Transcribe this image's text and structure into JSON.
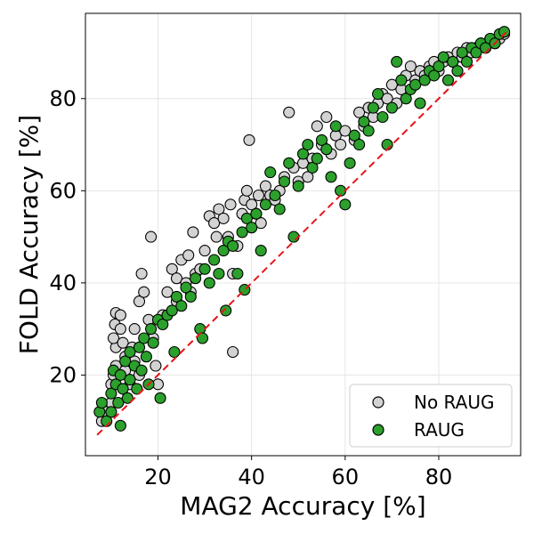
{
  "chart_data": {
    "type": "scatter",
    "title": "",
    "xlabel": "MAG2 Accuracy [%]",
    "ylabel": "FOLD Accuracy [%]",
    "xlim": [
      4.5,
      97.5
    ],
    "ylim": [
      2.5,
      98.5
    ],
    "xticks": [
      20,
      40,
      60,
      80
    ],
    "yticks": [
      20,
      40,
      60,
      80
    ],
    "grid": true,
    "legend_position": "bottom-right",
    "reference_line": {
      "style": "dashed",
      "color": "#e8141a",
      "x": [
        7,
        95
      ],
      "y": [
        7,
        95
      ]
    },
    "series": [
      {
        "name": "No RAUG",
        "color": "#d3d3d3",
        "points": [
          [
            8,
            10
          ],
          [
            9,
            12
          ],
          [
            10,
            14
          ],
          [
            10,
            18
          ],
          [
            10.5,
            20
          ],
          [
            11,
            22
          ],
          [
            11,
            26
          ],
          [
            10.5,
            28
          ],
          [
            10.8,
            31
          ],
          [
            11,
            33.5
          ],
          [
            12,
            33
          ],
          [
            12,
            30
          ],
          [
            12.5,
            27
          ],
          [
            13,
            24
          ],
          [
            13,
            21
          ],
          [
            14,
            18
          ],
          [
            14.5,
            26
          ],
          [
            15,
            30
          ],
          [
            15,
            23
          ],
          [
            16,
            20
          ],
          [
            16,
            36
          ],
          [
            16.5,
            42
          ],
          [
            17,
            38
          ],
          [
            18,
            32
          ],
          [
            18.5,
            50
          ],
          [
            19,
            28
          ],
          [
            19.5,
            22
          ],
          [
            20,
            18
          ],
          [
            21,
            33
          ],
          [
            22,
            38
          ],
          [
            23,
            43
          ],
          [
            24,
            41
          ],
          [
            24,
            36
          ],
          [
            25,
            45
          ],
          [
            26,
            40
          ],
          [
            26.5,
            46
          ],
          [
            27,
            38
          ],
          [
            27.5,
            51
          ],
          [
            28,
            42
          ],
          [
            29,
            43
          ],
          [
            30,
            47
          ],
          [
            31,
            54.5
          ],
          [
            32,
            53
          ],
          [
            32.5,
            50
          ],
          [
            33,
            56
          ],
          [
            34,
            54
          ],
          [
            35,
            50
          ],
          [
            35.5,
            57
          ],
          [
            36,
            25
          ],
          [
            36,
            42
          ],
          [
            37,
            48
          ],
          [
            38,
            55
          ],
          [
            38.5,
            58
          ],
          [
            39,
            60
          ],
          [
            39.5,
            71
          ],
          [
            40,
            57
          ],
          [
            41,
            55
          ],
          [
            41.5,
            59
          ],
          [
            42,
            53
          ],
          [
            43,
            61
          ],
          [
            44,
            59
          ],
          [
            45,
            58
          ],
          [
            46,
            60
          ],
          [
            47,
            63
          ],
          [
            48,
            77
          ],
          [
            49,
            65
          ],
          [
            50,
            62
          ],
          [
            51,
            66
          ],
          [
            52,
            63
          ],
          [
            53,
            67
          ],
          [
            54,
            74
          ],
          [
            55,
            70
          ],
          [
            56,
            76
          ],
          [
            57,
            68
          ],
          [
            58,
            72
          ],
          [
            59,
            70
          ],
          [
            60,
            73
          ],
          [
            62,
            71
          ],
          [
            63,
            77
          ],
          [
            64,
            74
          ],
          [
            65,
            78
          ],
          [
            66,
            76
          ],
          [
            67,
            79
          ],
          [
            68,
            81
          ],
          [
            69,
            80
          ],
          [
            70,
            83
          ],
          [
            71,
            79
          ],
          [
            72,
            82
          ],
          [
            73,
            85
          ],
          [
            74,
            87
          ],
          [
            75,
            84
          ],
          [
            76,
            86
          ],
          [
            77,
            85
          ],
          [
            78,
            87
          ],
          [
            79,
            88
          ],
          [
            80,
            86
          ],
          [
            81,
            88
          ],
          [
            82,
            89
          ],
          [
            83,
            88
          ],
          [
            84,
            90
          ],
          [
            85,
            89
          ],
          [
            86,
            91
          ],
          [
            87,
            90
          ],
          [
            88,
            91
          ],
          [
            89,
            92
          ],
          [
            90,
            91
          ],
          [
            91,
            93
          ],
          [
            92,
            92
          ],
          [
            93,
            93
          ],
          [
            94,
            94
          ]
        ]
      },
      {
        "name": "RAUG",
        "color": "#2ca02c",
        "points": [
          [
            7.5,
            12
          ],
          [
            8,
            14
          ],
          [
            9,
            10
          ],
          [
            10,
            12
          ],
          [
            10,
            16
          ],
          [
            10.5,
            21
          ],
          [
            11,
            18
          ],
          [
            11.5,
            14
          ],
          [
            12,
            9
          ],
          [
            12,
            20
          ],
          [
            12.5,
            17
          ],
          [
            13,
            23
          ],
          [
            13.5,
            15
          ],
          [
            14,
            19
          ],
          [
            14,
            25
          ],
          [
            15,
            22
          ],
          [
            15.5,
            17
          ],
          [
            16,
            26
          ],
          [
            16.5,
            21
          ],
          [
            17,
            28
          ],
          [
            17.5,
            24
          ],
          [
            18,
            18
          ],
          [
            18.5,
            30
          ],
          [
            19,
            27
          ],
          [
            20,
            32
          ],
          [
            20.5,
            15
          ],
          [
            21,
            31
          ],
          [
            22,
            33
          ],
          [
            23,
            34
          ],
          [
            23.5,
            25
          ],
          [
            24,
            37
          ],
          [
            25,
            35
          ],
          [
            26,
            39
          ],
          [
            27,
            37
          ],
          [
            28,
            41
          ],
          [
            29,
            30
          ],
          [
            29.5,
            28
          ],
          [
            30,
            43
          ],
          [
            31,
            40
          ],
          [
            32,
            45
          ],
          [
            33,
            42
          ],
          [
            34,
            47
          ],
          [
            34.5,
            34
          ],
          [
            35,
            49
          ],
          [
            36,
            48
          ],
          [
            37,
            42
          ],
          [
            38,
            51
          ],
          [
            38.5,
            38.5
          ],
          [
            39,
            54
          ],
          [
            40,
            52
          ],
          [
            41,
            55
          ],
          [
            42,
            47
          ],
          [
            43,
            57
          ],
          [
            44,
            64
          ],
          [
            45,
            59
          ],
          [
            46,
            56
          ],
          [
            47,
            62
          ],
          [
            48,
            66
          ],
          [
            49,
            50
          ],
          [
            50,
            61
          ],
          [
            51,
            68
          ],
          [
            52,
            70
          ],
          [
            53,
            65
          ],
          [
            54,
            67
          ],
          [
            55,
            71
          ],
          [
            56,
            69
          ],
          [
            57,
            63
          ],
          [
            58,
            74
          ],
          [
            59,
            60
          ],
          [
            60,
            57
          ],
          [
            61,
            66
          ],
          [
            62,
            72
          ],
          [
            63,
            70
          ],
          [
            64,
            75
          ],
          [
            65,
            73
          ],
          [
            66,
            78
          ],
          [
            67,
            81
          ],
          [
            68,
            76
          ],
          [
            69,
            70
          ],
          [
            70,
            78
          ],
          [
            71,
            88
          ],
          [
            72,
            84
          ],
          [
            73,
            80
          ],
          [
            74,
            82
          ],
          [
            75,
            83
          ],
          [
            76,
            79
          ],
          [
            77,
            84
          ],
          [
            78,
            86
          ],
          [
            79,
            85
          ],
          [
            80,
            87
          ],
          [
            81,
            89
          ],
          [
            82,
            84
          ],
          [
            83,
            88
          ],
          [
            84,
            86
          ],
          [
            85,
            90
          ],
          [
            86,
            88
          ],
          [
            87,
            91
          ],
          [
            88,
            90
          ],
          [
            89,
            92
          ],
          [
            90,
            91
          ],
          [
            91,
            93
          ],
          [
            92,
            92
          ],
          [
            93,
            94
          ],
          [
            94,
            94.5
          ]
        ]
      }
    ]
  }
}
